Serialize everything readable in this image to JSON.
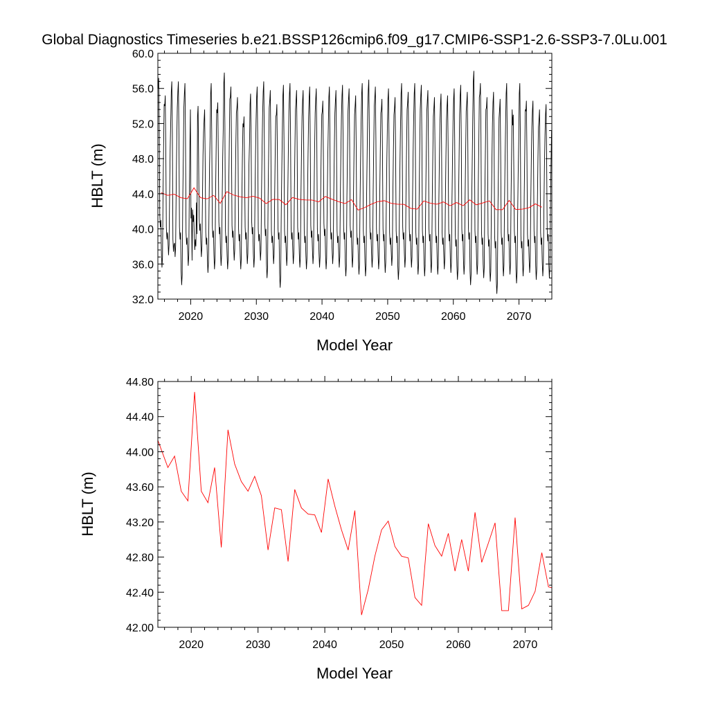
{
  "title": "Global Diagnostics Timeseries b.e21.BSSP126cmip6.f09_g17.CMIP6-SSP1-2.6-SSP3-7.0Lu.001",
  "colors": {
    "monthly_line": "#000000",
    "annual_line": "#ff0000",
    "axes": "#000000",
    "background": "#ffffff"
  },
  "chart_data": [
    {
      "type": "line",
      "xlabel": "Model Year",
      "ylabel": "HBLT (m)",
      "xlim": [
        2015,
        2075
      ],
      "ylim": [
        32.0,
        60.0
      ],
      "xticks": [
        2020,
        2030,
        2040,
        2050,
        2060,
        2070
      ],
      "yticks": [
        32.0,
        36.0,
        40.0,
        44.0,
        48.0,
        52.0,
        56.0,
        60.0
      ],
      "ytick_labels": [
        "32.0",
        "36.0",
        "40.0",
        "44.0",
        "48.0",
        "52.0",
        "56.0",
        "60.0"
      ],
      "grid": false,
      "series": [
        {
          "style": "monthly seasonal cycle",
          "color": "#000000",
          "seasonal_summer_min_by_year": [
            35.6,
            37.0,
            36.8,
            33.6,
            35.8,
            37.6,
            36.8,
            35.0,
            35.4,
            35.8,
            35.4,
            36.4,
            35.4,
            36.0,
            35.6,
            36.4,
            34.4,
            36.0,
            33.3,
            35.8,
            36.0,
            35.6,
            35.4,
            36.0,
            35.6,
            35.4,
            36.0,
            35.6,
            34.6,
            35.6,
            34.8,
            34.6,
            35.6,
            35.4,
            35.0,
            35.8,
            34.2,
            35.6,
            35.6,
            34.8,
            34.6,
            35.0,
            34.8,
            35.4,
            35.0,
            34.2,
            34.8,
            33.6,
            34.8,
            34.4,
            34.0,
            32.6,
            34.6,
            34.8,
            33.8,
            34.6,
            35.0,
            34.2,
            34.6,
            34.4,
            35.4
          ],
          "seasonal_spring_min_by_year": [
            40.2,
            38.8,
            37.4,
            38.8,
            38.2,
            40.8,
            39.8,
            38.2,
            39.0,
            39.4,
            38.4,
            39.0,
            38.6,
            38.8,
            39.4,
            38.6,
            39.2,
            38.4,
            38.8,
            38.4,
            38.8,
            38.8,
            38.4,
            39.0,
            38.6,
            39.2,
            38.8,
            38.4,
            38.8,
            39.0,
            38.2,
            38.4,
            38.8,
            38.6,
            38.6,
            38.2,
            38.4,
            38.8,
            38.6,
            38.2,
            38.4,
            38.6,
            38.4,
            38.2,
            38.6,
            38.0,
            38.6,
            38.8,
            38.4,
            38.2,
            38.0,
            37.8,
            38.2,
            38.6,
            38.4,
            37.8,
            38.0,
            38.4,
            38.2,
            38.6,
            38.0
          ],
          "seasonal_max_by_year": [
            57.2,
            55.2,
            56.8,
            56.8,
            56.6,
            42.4,
            54.0,
            53.6,
            56.6,
            54.4,
            57.8,
            56.2,
            55.0,
            52.8,
            55.4,
            56.2,
            56.8,
            55.8,
            54.2,
            56.4,
            56.6,
            55.8,
            55.8,
            56.2,
            56.0,
            54.6,
            56.2,
            55.8,
            56.4,
            56.0,
            55.2,
            56.6,
            57.0,
            56.2,
            54.8,
            56.0,
            55.0,
            56.6,
            55.6,
            56.6,
            56.4,
            55.8,
            55.0,
            55.4,
            55.2,
            56.0,
            56.4,
            55.6,
            58.0,
            56.6,
            55.0,
            55.6,
            54.8,
            56.6,
            53.0,
            56.6,
            54.6,
            54.6,
            53.6,
            54.2,
            53.0
          ]
        },
        {
          "style": "annual mean",
          "color": "#ff0000",
          "x": [
            2015.5,
            2016.5,
            2017.5,
            2018.5,
            2019.5,
            2020.5,
            2021.5,
            2022.5,
            2023.5,
            2024.5,
            2025.5,
            2026.5,
            2027.5,
            2028.5,
            2029.5,
            2030.5,
            2031.5,
            2032.5,
            2033.5,
            2034.5,
            2035.5,
            2036.5,
            2037.5,
            2038.5,
            2039.5,
            2040.5,
            2041.5,
            2042.5,
            2043.5,
            2044.5,
            2045.5,
            2046.5,
            2047.5,
            2048.5,
            2049.5,
            2050.5,
            2051.5,
            2052.5,
            2053.5,
            2054.5,
            2055.5,
            2056.5,
            2057.5,
            2058.5,
            2059.5,
            2060.5,
            2061.5,
            2062.5,
            2063.5,
            2064.5,
            2065.5,
            2066.5,
            2067.5,
            2068.5,
            2069.5,
            2070.5,
            2071.5,
            2072.5,
            2073.5
          ],
          "values": [
            44.12,
            43.82,
            43.95,
            43.55,
            43.44,
            44.68,
            43.55,
            43.42,
            43.82,
            42.91,
            44.25,
            43.86,
            43.66,
            43.55,
            43.72,
            43.5,
            42.88,
            43.36,
            43.34,
            42.75,
            43.57,
            43.36,
            43.29,
            43.28,
            43.08,
            43.69,
            43.38,
            43.11,
            42.88,
            43.33,
            42.14,
            42.43,
            42.81,
            43.11,
            43.21,
            42.92,
            42.81,
            42.79,
            42.34,
            42.25,
            43.18,
            42.93,
            42.81,
            43.07,
            42.64,
            43.0,
            42.64,
            43.31,
            42.74,
            42.96,
            43.19,
            42.19,
            42.19,
            43.25,
            42.21,
            42.25,
            42.41,
            42.85,
            42.46
          ]
        }
      ]
    },
    {
      "type": "line",
      "xlabel": "Model Year",
      "ylabel": "HBLT (m)",
      "xlim": [
        2015,
        2074
      ],
      "ylim": [
        42.0,
        44.8
      ],
      "xticks": [
        2020,
        2030,
        2040,
        2050,
        2060,
        2070
      ],
      "yticks": [
        42.0,
        42.4,
        42.8,
        43.2,
        43.6,
        44.0,
        44.4,
        44.8
      ],
      "ytick_labels": [
        "42.00",
        "42.40",
        "42.80",
        "43.20",
        "43.60",
        "44.00",
        "44.40",
        "44.80"
      ],
      "grid": false,
      "series": [
        {
          "style": "annual mean",
          "color": "#ff0000",
          "x": [
            2015.0,
            2016.5,
            2017.5,
            2018.5,
            2019.5,
            2020.5,
            2021.5,
            2022.5,
            2023.5,
            2024.5,
            2025.5,
            2026.5,
            2027.5,
            2028.5,
            2029.5,
            2030.5,
            2031.5,
            2032.5,
            2033.5,
            2034.5,
            2035.5,
            2036.5,
            2037.5,
            2038.5,
            2039.5,
            2040.5,
            2041.5,
            2042.5,
            2043.5,
            2044.5,
            2045.5,
            2046.5,
            2047.5,
            2048.5,
            2049.5,
            2050.5,
            2051.5,
            2052.5,
            2053.5,
            2054.5,
            2055.5,
            2056.5,
            2057.5,
            2058.5,
            2059.5,
            2060.5,
            2061.5,
            2062.5,
            2063.5,
            2064.5,
            2065.5,
            2066.5,
            2067.5,
            2068.5,
            2069.5,
            2070.5,
            2071.5,
            2072.5,
            2073.5,
            2074.0
          ],
          "values": [
            44.13,
            43.82,
            43.95,
            43.55,
            43.44,
            44.68,
            43.55,
            43.42,
            43.82,
            42.91,
            44.25,
            43.86,
            43.66,
            43.55,
            43.72,
            43.5,
            42.88,
            43.36,
            43.34,
            42.75,
            43.57,
            43.36,
            43.29,
            43.28,
            43.08,
            43.69,
            43.38,
            43.11,
            42.88,
            43.33,
            42.14,
            42.43,
            42.81,
            43.11,
            43.21,
            42.92,
            42.81,
            42.79,
            42.34,
            42.25,
            43.18,
            42.93,
            42.81,
            43.07,
            42.64,
            43.0,
            42.64,
            43.31,
            42.74,
            42.96,
            43.19,
            42.19,
            42.19,
            43.25,
            42.21,
            42.25,
            42.41,
            42.85,
            42.46,
            42.45
          ]
        }
      ]
    }
  ]
}
